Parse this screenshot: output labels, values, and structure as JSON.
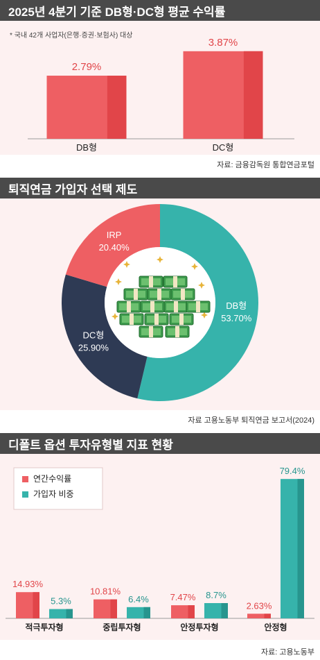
{
  "charts": {
    "returns": {
      "title": "2025년 4분기 기준 DB형·DC형 평균 수익률",
      "note": "* 국내 42개 사업자(은행·증권·보험사) 대상",
      "source": "자료: 금융감독원 통합연금포털"
    },
    "subscribers": {
      "title": "퇴직연금 가입자 선택 제도",
      "source": "자료 고용노동부 퇴직연금 보고서(2024)"
    },
    "default_option": {
      "title": "디폴트 옵션 투자유형별 지표 현황",
      "source": "자료: 고용노동부"
    }
  },
  "colors": {
    "red": "#ee5f63",
    "red_dark": "#e14549",
    "teal": "#36b3ab",
    "teal_dark": "#27958e",
    "navy": "#2e3a54",
    "header": "#4a4a4a",
    "panel": "#fdf1f1"
  },
  "chart_data": [
    {
      "type": "bar",
      "title": "2025년 4분기 기준 DB형·DC형 평균 수익률",
      "categories": [
        "DB형",
        "DC형"
      ],
      "values": [
        2.79,
        3.87
      ],
      "value_labels": [
        "2.79%",
        "3.87%"
      ],
      "ylim": [
        0,
        4.6
      ],
      "grid": false,
      "legend": "none"
    },
    {
      "type": "pie",
      "title": "퇴직연금 가입자 선택 제도",
      "donut": true,
      "slices": [
        {
          "label": "DB형",
          "value": 53.7,
          "value_label": "53.70%",
          "color": "#36b3ab"
        },
        {
          "label": "DC형",
          "value": 25.9,
          "value_label": "25.90%",
          "color": "#2e3a54"
        },
        {
          "label": "IRP",
          "value": 20.4,
          "value_label": "20.40%",
          "color": "#ee5f63"
        }
      ],
      "center_image": "money-stack-icon"
    },
    {
      "type": "bar",
      "title": "디폴트 옵션 투자유형별 지표 현황",
      "categories": [
        "적극투자형",
        "중립투자형",
        "안정투자형",
        "안정형"
      ],
      "series": [
        {
          "name": "연간수익률",
          "values": [
            14.93,
            10.81,
            7.47,
            2.63
          ],
          "labels": [
            "14.93%",
            "10.81%",
            "7.47%",
            "2.63%"
          ],
          "color": "#ee5f63"
        },
        {
          "name": "가입자 비중",
          "values": [
            5.3,
            6.4,
            8.7,
            79.4
          ],
          "labels": [
            "5.3%",
            "6.4%",
            "8.7%",
            "79.4%"
          ],
          "color": "#36b3ab"
        }
      ],
      "ylim": [
        0,
        85
      ],
      "grid": false,
      "legend": "top-left"
    }
  ]
}
